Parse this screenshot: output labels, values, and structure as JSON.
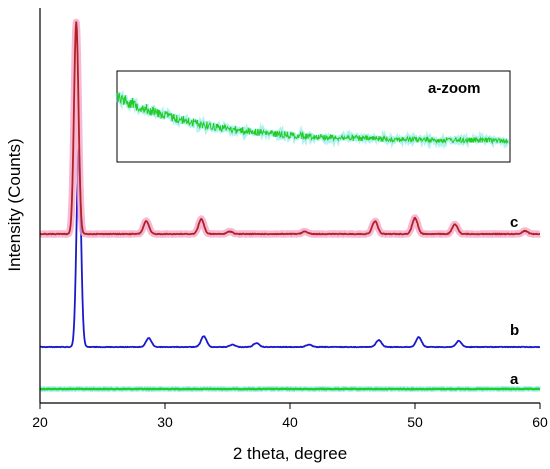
{
  "chart_data": {
    "type": "line",
    "xlabel": "2 theta, degree",
    "ylabel": "Intensity (Counts)",
    "xlim": [
      20,
      60
    ],
    "xticks": [
      20,
      30,
      40,
      50,
      60
    ],
    "grid": false,
    "y_ticks_shown": false,
    "series": [
      {
        "name": "a",
        "color": "#22cc22",
        "halo": "#7fe8e8",
        "peaks": []
      },
      {
        "name": "b",
        "color": "#1a1acc",
        "halo": null,
        "peaks": [
          [
            23.1,
            1.0
          ],
          [
            28.7,
            0.045
          ],
          [
            33.1,
            0.055
          ],
          [
            35.4,
            0.012
          ],
          [
            37.3,
            0.02
          ],
          [
            41.5,
            0.012
          ],
          [
            47.1,
            0.035
          ],
          [
            50.3,
            0.05
          ],
          [
            53.5,
            0.03
          ]
        ]
      },
      {
        "name": "c",
        "color": "#b22222",
        "halo": "#f4a0c8",
        "peaks": [
          [
            22.9,
            1.0
          ],
          [
            28.5,
            0.06
          ],
          [
            32.9,
            0.07
          ],
          [
            35.2,
            0.012
          ],
          [
            41.2,
            0.012
          ],
          [
            46.8,
            0.06
          ],
          [
            50.0,
            0.075
          ],
          [
            53.2,
            0.045
          ],
          [
            58.8,
            0.015
          ]
        ]
      }
    ],
    "inset": {
      "label": "a-zoom",
      "series": "a",
      "description_trend": "decaying"
    }
  }
}
